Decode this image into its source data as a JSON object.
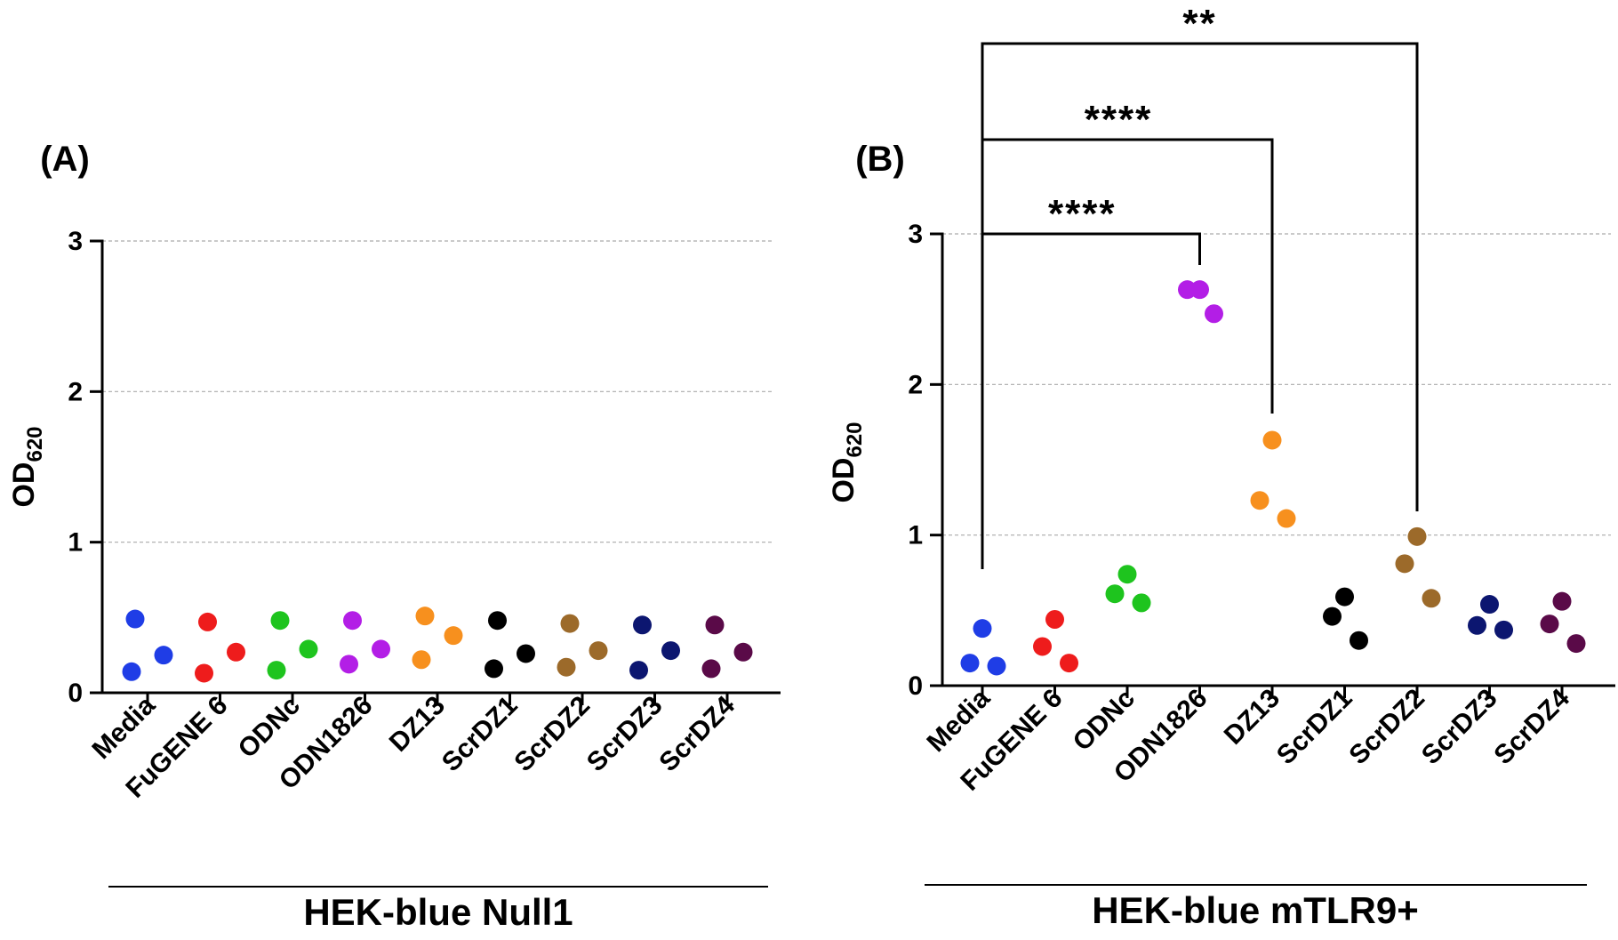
{
  "chart_data": [
    {
      "type": "scatter",
      "panel_label": "(A)",
      "ylabel": "OD",
      "ylabel_subscript": "620",
      "xlabel": "HEK-blue Null1",
      "ylim": [
        0,
        3
      ],
      "yticks": [
        0,
        1,
        2,
        3
      ],
      "ytick_labels": [
        "0",
        "1",
        "2",
        "3"
      ],
      "grid": true,
      "categories": [
        "Media",
        "FuGENE 6",
        "ODNc",
        "ODN1826",
        "DZ13",
        "ScrDZ1",
        "ScrDZ2",
        "ScrDZ3",
        "ScrDZ4"
      ],
      "colors": [
        "#1f3de6",
        "#ee1c1c",
        "#1ec41e",
        "#b31ee6",
        "#f7901e",
        "#000000",
        "#9c6a2a",
        "#0c1670",
        "#5a0a48"
      ],
      "series": [
        {
          "name": "Media",
          "values": [
            0.49,
            0.25,
            0.14
          ]
        },
        {
          "name": "FuGENE 6",
          "values": [
            0.47,
            0.27,
            0.13
          ]
        },
        {
          "name": "ODNc",
          "values": [
            0.48,
            0.29,
            0.15
          ]
        },
        {
          "name": "ODN1826",
          "values": [
            0.48,
            0.29,
            0.19
          ]
        },
        {
          "name": "DZ13",
          "values": [
            0.51,
            0.38,
            0.22
          ]
        },
        {
          "name": "ScrDZ1",
          "values": [
            0.48,
            0.26,
            0.16
          ]
        },
        {
          "name": "ScrDZ2",
          "values": [
            0.46,
            0.28,
            0.17
          ]
        },
        {
          "name": "ScrDZ3",
          "values": [
            0.45,
            0.28,
            0.15
          ]
        },
        {
          "name": "ScrDZ4",
          "values": [
            0.45,
            0.27,
            0.16
          ]
        }
      ],
      "significance": []
    },
    {
      "type": "scatter",
      "panel_label": "(B)",
      "ylabel": "OD",
      "ylabel_subscript": "620",
      "xlabel": "HEK-blue mTLR9+",
      "ylim": [
        0,
        3
      ],
      "yticks": [
        0,
        1,
        2,
        3
      ],
      "ytick_labels": [
        "0",
        "1",
        "2",
        "3"
      ],
      "grid": true,
      "categories": [
        "Media",
        "FuGENE 6",
        "ODNc",
        "ODN1826",
        "DZ13",
        "ScrDZ1",
        "ScrDZ2",
        "ScrDZ3",
        "ScrDZ4"
      ],
      "colors": [
        "#1f3de6",
        "#ee1c1c",
        "#1ec41e",
        "#b31ee6",
        "#f7901e",
        "#000000",
        "#9c6a2a",
        "#0c1670",
        "#5a0a48"
      ],
      "series": [
        {
          "name": "Media",
          "values": [
            0.38,
            0.15,
            0.13
          ]
        },
        {
          "name": "FuGENE 6",
          "values": [
            0.44,
            0.26,
            0.15
          ]
        },
        {
          "name": "ODNc",
          "values": [
            0.74,
            0.61,
            0.55
          ]
        },
        {
          "name": "ODN1826",
          "values": [
            2.63,
            2.63,
            2.47
          ]
        },
        {
          "name": "DZ13",
          "values": [
            1.63,
            1.23,
            1.11
          ]
        },
        {
          "name": "ScrDZ1",
          "values": [
            0.59,
            0.46,
            0.3
          ]
        },
        {
          "name": "ScrDZ2",
          "values": [
            0.99,
            0.81,
            0.58
          ]
        },
        {
          "name": "ScrDZ3",
          "values": [
            0.54,
            0.4,
            0.37
          ]
        },
        {
          "name": "ScrDZ4",
          "values": [
            0.56,
            0.41,
            0.28
          ]
        }
      ],
      "significance": [
        {
          "from": "Media",
          "to": "ODN1826",
          "stars": "****"
        },
        {
          "from": "Media",
          "to": "DZ13",
          "stars": "****"
        },
        {
          "from": "Media",
          "to": "ScrDZ2",
          "stars": "**"
        }
      ]
    }
  ]
}
